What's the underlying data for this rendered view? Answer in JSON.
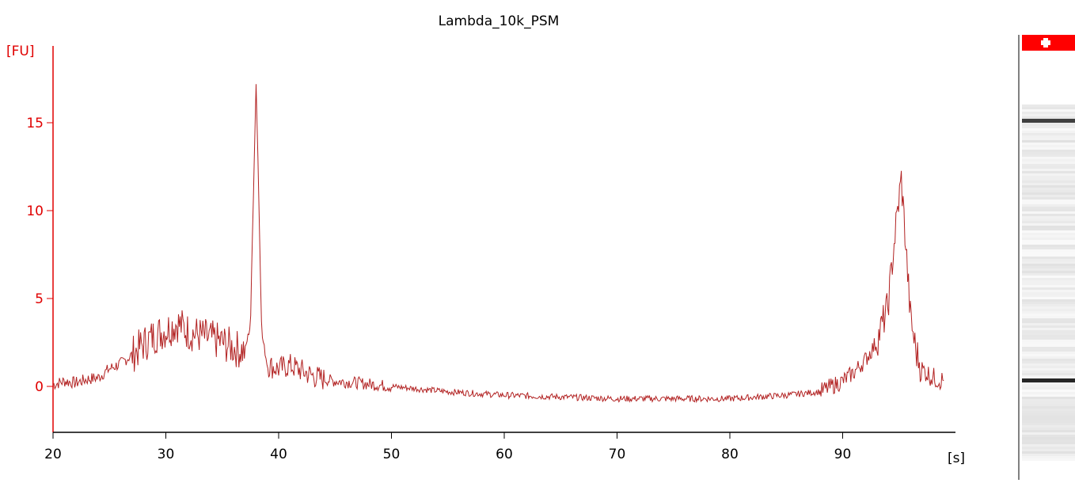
{
  "chart_data": {
    "type": "line",
    "title": "Lambda_10k_PSM",
    "ylabel": "[FU]",
    "xlabel": "[s]",
    "xlim": [
      20,
      100
    ],
    "ylim": [
      -2.5,
      18
    ],
    "xticks": [
      20,
      30,
      40,
      50,
      60,
      70,
      80,
      90
    ],
    "yticks": [
      0,
      5,
      10,
      15
    ],
    "grid": false,
    "legend": "none",
    "colors": {
      "trace": "#b22222",
      "y_axis": "#e00000",
      "x_axis": "#000000",
      "marker": "#ff0000"
    },
    "series": [
      {
        "points": [
          [
            20,
            0.1
          ],
          [
            21,
            0.3
          ],
          [
            22,
            0.2
          ],
          [
            23,
            0.4
          ],
          [
            24,
            0.5
          ],
          [
            25,
            1.0
          ],
          [
            26,
            1.3
          ],
          [
            27,
            1.8
          ],
          [
            28,
            2.4
          ],
          [
            29,
            2.9
          ],
          [
            30,
            3.2
          ],
          [
            31,
            3.6
          ],
          [
            32,
            3.1
          ],
          [
            33,
            2.9
          ],
          [
            34,
            2.7
          ],
          [
            35,
            2.5
          ],
          [
            36,
            2.2
          ],
          [
            37,
            2.0
          ],
          [
            37.5,
            3.5
          ],
          [
            37.8,
            12.0
          ],
          [
            38.0,
            17.3
          ],
          [
            38.2,
            12.0
          ],
          [
            38.5,
            3.0
          ],
          [
            39,
            1.2
          ],
          [
            40,
            1.0
          ],
          [
            41,
            1.2
          ],
          [
            42,
            0.9
          ],
          [
            43,
            0.6
          ],
          [
            44,
            0.4
          ],
          [
            45,
            0.3
          ],
          [
            47,
            0.2
          ],
          [
            50,
            0.0
          ],
          [
            55,
            -0.3
          ],
          [
            60,
            -0.5
          ],
          [
            65,
            -0.6
          ],
          [
            70,
            -0.7
          ],
          [
            75,
            -0.7
          ],
          [
            80,
            -0.7
          ],
          [
            85,
            -0.5
          ],
          [
            88,
            -0.3
          ],
          [
            90,
            0.3
          ],
          [
            91,
            0.8
          ],
          [
            92,
            1.5
          ],
          [
            93,
            2.5
          ],
          [
            94,
            4.5
          ],
          [
            94.7,
            9.0
          ],
          [
            95.2,
            11.8
          ],
          [
            95.6,
            8.0
          ],
          [
            96,
            4.0
          ],
          [
            96.5,
            2.0
          ],
          [
            97,
            1.0
          ],
          [
            98,
            0.5
          ],
          [
            99,
            0.3
          ]
        ]
      }
    ]
  },
  "gel_lane": {
    "band_marker_color": "#ff0000",
    "bands": [
      {
        "time": 38.0,
        "intensity": 0.75
      },
      {
        "time": 95.2,
        "intensity": 0.85
      }
    ]
  }
}
